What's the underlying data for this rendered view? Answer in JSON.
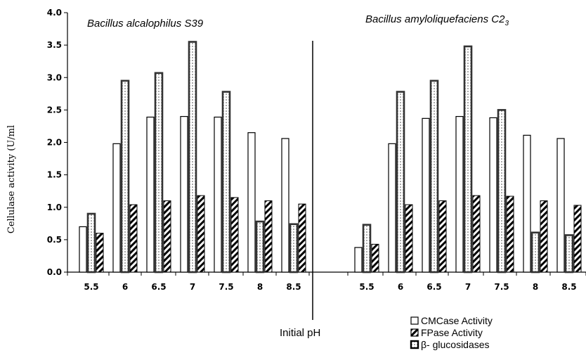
{
  "chart_data": {
    "type": "bar",
    "ylabel": "Cellulase activity (U/ml",
    "xlabel": "Initial pH",
    "ylim": [
      0,
      4.0
    ],
    "yticks": [
      "0.0",
      "0.5",
      "1.0",
      "1.5",
      "2.0",
      "2.5",
      "3.0",
      "3.5",
      "4.0"
    ],
    "grid": false,
    "legend_position": "bottom-right",
    "legend": [
      {
        "label": "CMCase  Activity",
        "pattern": "empty"
      },
      {
        "label": "FPase  Activity",
        "pattern": "diagonal"
      },
      {
        "label": "β- glucosidases",
        "pattern": "dotted"
      }
    ],
    "panels": [
      {
        "title": "Bacillus alcalophilus  S39",
        "title_subscript": "",
        "categories": [
          "5.5",
          "6",
          "6.5",
          "7",
          "7.5",
          "8",
          "8.5"
        ],
        "series": [
          {
            "name": "CMCase  Activity",
            "pattern": "empty",
            "values": [
              0.7,
              1.98,
              2.39,
              2.4,
              2.39,
              2.15,
              2.06
            ]
          },
          {
            "name": "β- glucosidases",
            "pattern": "dotted",
            "values": [
              0.9,
              2.95,
              3.07,
              3.55,
              2.78,
              0.78,
              0.74
            ]
          },
          {
            "name": "FPase  Activity",
            "pattern": "diagonal",
            "values": [
              0.6,
              1.04,
              1.1,
              1.18,
              1.15,
              1.1,
              1.05
            ]
          }
        ]
      },
      {
        "title": "Bacillus amyloliquefaciens C2",
        "title_subscript": "3",
        "categories": [
          "5.5",
          "6",
          "6.5",
          "7",
          "7.5",
          "8",
          "8.5"
        ],
        "series": [
          {
            "name": "CMCase  Activity",
            "pattern": "empty",
            "values": [
              0.38,
              1.98,
              2.37,
              2.4,
              2.38,
              2.11,
              2.06
            ]
          },
          {
            "name": "β- glucosidases",
            "pattern": "dotted",
            "values": [
              0.73,
              2.78,
              2.95,
              3.48,
              2.5,
              0.61,
              0.57
            ]
          },
          {
            "name": "FPase  Activity",
            "pattern": "diagonal",
            "values": [
              0.43,
              1.04,
              1.1,
              1.18,
              1.17,
              1.1,
              1.03
            ]
          }
        ]
      }
    ]
  }
}
